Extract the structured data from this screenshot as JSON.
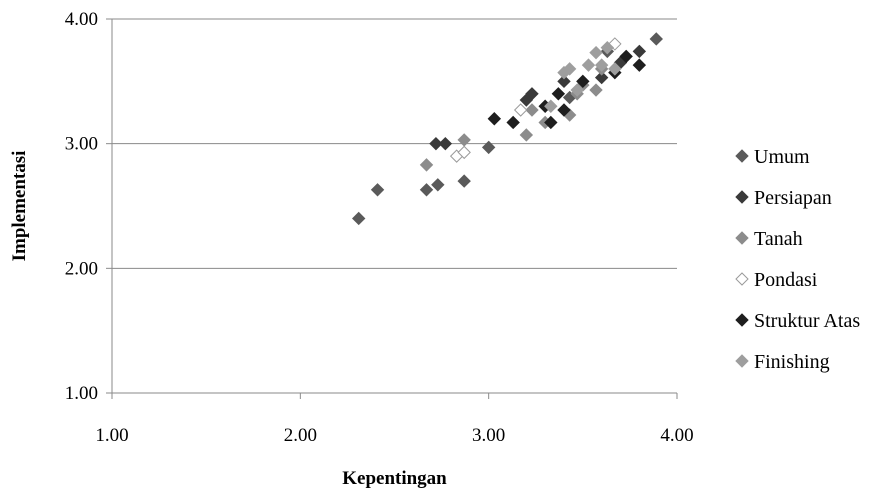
{
  "chart_data": {
    "type": "scatter",
    "title": "",
    "xlabel": "Kepentingan",
    "ylabel": "Implementasi",
    "xlim": [
      1,
      4
    ],
    "ylim": [
      1,
      4
    ],
    "x_ticks": [
      "1.00",
      "2.00",
      "3.00",
      "4.00"
    ],
    "y_ticks": [
      "1.00",
      "2.00",
      "3.00",
      "4.00"
    ],
    "grid": "horizontal",
    "legend_position": "right",
    "series": [
      {
        "name": "Umum",
        "marker": "diamond-filled",
        "color": "#5a5a5a",
        "points": [
          [
            2.31,
            2.4
          ],
          [
            2.41,
            2.63
          ],
          [
            2.67,
            2.63
          ],
          [
            2.73,
            2.67
          ],
          [
            2.87,
            2.7
          ],
          [
            3.0,
            2.97
          ],
          [
            3.43,
            3.37
          ],
          [
            3.63,
            3.74
          ],
          [
            3.89,
            3.84
          ]
        ]
      },
      {
        "name": "Persiapan",
        "marker": "diamond-filled",
        "color": "#3a3a3a",
        "points": [
          [
            2.72,
            3.0
          ],
          [
            2.77,
            3.0
          ],
          [
            3.2,
            3.35
          ],
          [
            3.23,
            3.4
          ],
          [
            3.4,
            3.5
          ],
          [
            3.6,
            3.53
          ],
          [
            3.7,
            3.65
          ],
          [
            3.8,
            3.74
          ]
        ]
      },
      {
        "name": "Tanah",
        "marker": "diamond-filled",
        "color": "#8c8c8c",
        "points": [
          [
            2.67,
            2.83
          ],
          [
            2.87,
            3.03
          ],
          [
            3.2,
            3.07
          ],
          [
            3.23,
            3.27
          ],
          [
            3.3,
            3.17
          ],
          [
            3.43,
            3.23
          ],
          [
            3.47,
            3.4
          ],
          [
            3.5,
            3.47
          ],
          [
            3.57,
            3.43
          ],
          [
            3.6,
            3.6
          ]
        ]
      },
      {
        "name": "Pondasi",
        "marker": "diamond-open",
        "color": "#9a9a9a",
        "points": [
          [
            2.83,
            2.9
          ],
          [
            2.87,
            2.93
          ],
          [
            3.17,
            3.27
          ],
          [
            3.67,
            3.8
          ]
        ]
      },
      {
        "name": "Struktur Atas",
        "marker": "diamond-filled",
        "color": "#1e1e1e",
        "points": [
          [
            3.03,
            3.2
          ],
          [
            3.13,
            3.17
          ],
          [
            3.3,
            3.3
          ],
          [
            3.33,
            3.17
          ],
          [
            3.37,
            3.4
          ],
          [
            3.4,
            3.27
          ],
          [
            3.5,
            3.5
          ],
          [
            3.67,
            3.57
          ],
          [
            3.73,
            3.7
          ],
          [
            3.8,
            3.63
          ]
        ]
      },
      {
        "name": "Finishing",
        "marker": "diamond-filled",
        "color": "#9e9e9e",
        "points": [
          [
            3.33,
            3.3
          ],
          [
            3.4,
            3.57
          ],
          [
            3.43,
            3.6
          ],
          [
            3.47,
            3.43
          ],
          [
            3.53,
            3.63
          ],
          [
            3.57,
            3.73
          ],
          [
            3.6,
            3.63
          ],
          [
            3.63,
            3.77
          ],
          [
            3.67,
            3.6
          ]
        ]
      }
    ]
  }
}
